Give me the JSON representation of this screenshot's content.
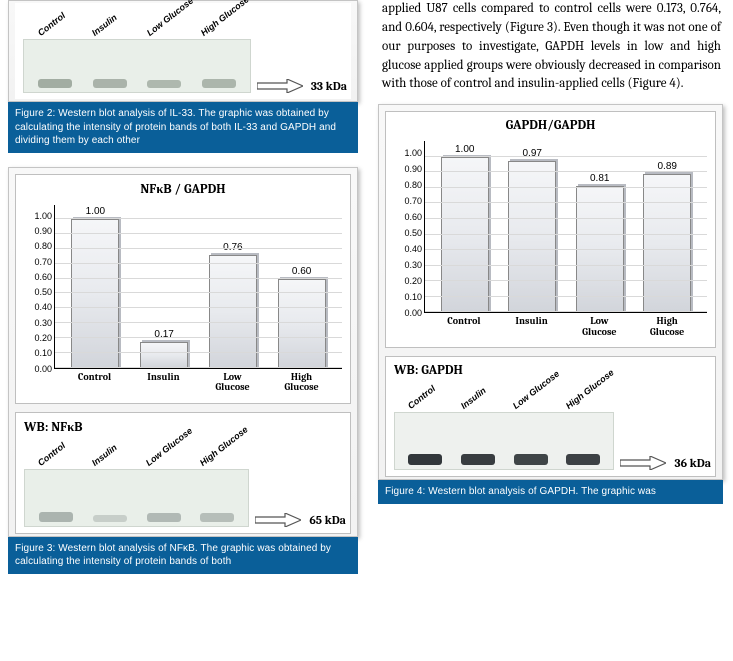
{
  "body_text": "applied U87 cells compared to control cells were 0.173, 0.764, and 0.604, respectively (Figure 3). Even though it was not one of our purposes to investigate, GAPDH levels in low and high glucose applied groups were obviously decreased in comparison with those of control and insulin-applied cells (Figure 4).",
  "fig2": {
    "wb_label": "",
    "blot": {
      "lanes": [
        "Control",
        "Insulin",
        "Low Glucose",
        "High Glucose"
      ],
      "kda": "33 kDa",
      "band_intensity": [
        0.55,
        0.45,
        0.4,
        0.42
      ],
      "band_color": "#7d8a7d",
      "bg": "#e9efe9"
    },
    "caption": "Figure 2: Western blot analysis of IL-33. The graphic was obtained by calculating the intensity of protein bands of both IL-33 and GAPDH and dividing them by each other"
  },
  "fig3": {
    "chart": {
      "title": "NFκB / GAPDH",
      "categories": [
        "Control",
        "Insulin",
        "Low\nGlucose",
        "High\nGlucose"
      ],
      "values": [
        1.0,
        0.17,
        0.76,
        0.6
      ],
      "value_labels": [
        "1.00",
        "0.17",
        "0.76",
        "0.60"
      ],
      "ylim": [
        0.0,
        1.1
      ],
      "yticks": [
        "0.00",
        "0.10",
        "0.20",
        "0.30",
        "0.40",
        "0.50",
        "0.60",
        "0.70",
        "0.80",
        "0.90",
        "1.00"
      ],
      "bar_fill": "#e4e6ea",
      "grid_color": "#d9d9d9"
    },
    "wb_label": "WB: NFκB",
    "blot": {
      "lanes": [
        "Control",
        "Insulin",
        "Low Glucose",
        "High Glucose"
      ],
      "kda": "65 kDa",
      "band_intensity": [
        0.55,
        0.15,
        0.45,
        0.38
      ],
      "band_color": "#8a9490",
      "bg": "#e9efe9"
    },
    "caption": "Figure 3: Western blot analysis of NFκB. The graphic was obtained by calculating the intensity of protein bands of both"
  },
  "fig4": {
    "chart": {
      "title": "GAPDH/GAPDH",
      "categories": [
        "Control",
        "Insulin",
        "Low\nGlucose",
        "High\nGlucose"
      ],
      "values": [
        1.0,
        0.97,
        0.81,
        0.89
      ],
      "value_labels": [
        "1.00",
        "0.97",
        "0.81",
        "0.89"
      ],
      "ylim": [
        0.0,
        1.1
      ],
      "yticks": [
        "0.00",
        "0.10",
        "0.20",
        "0.30",
        "0.40",
        "0.50",
        "0.60",
        "0.70",
        "0.80",
        "0.90",
        "1.00"
      ],
      "bar_fill": "#e4e6ea",
      "grid_color": "#d9d9d9"
    },
    "wb_label": "WB: GAPDH",
    "blot": {
      "lanes": [
        "Control",
        "Insulin",
        "Low Glucose",
        "High Glucose"
      ],
      "kda": "36 kDa",
      "band_intensity": [
        0.95,
        0.9,
        0.85,
        0.88
      ],
      "band_color": "#2a2f33",
      "bg": "#eef1ee"
    },
    "caption": "Figure 4: Western blot analysis of GAPDH. The graphic was"
  }
}
